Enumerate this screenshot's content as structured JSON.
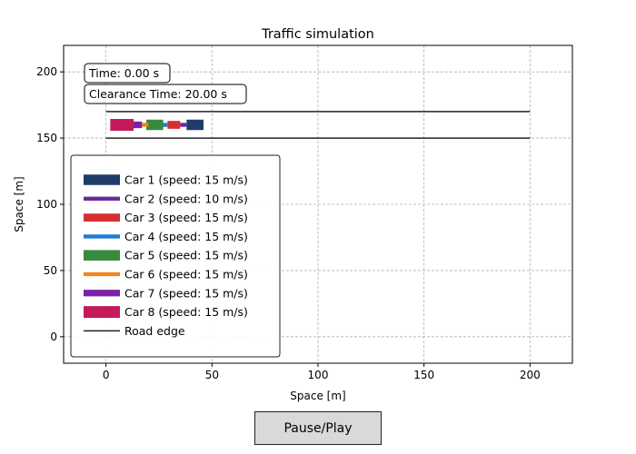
{
  "controls": {
    "pause_play_label": "Pause/Play"
  },
  "chart_data": {
    "type": "traffic",
    "title": "Traffic simulation",
    "xlabel": "Space [m]",
    "ylabel": "Space [m]",
    "xlim": [
      -20,
      220
    ],
    "ylim": [
      -20,
      220
    ],
    "xticks": [
      0,
      50,
      100,
      150,
      200
    ],
    "yticks": [
      0,
      50,
      100,
      150,
      200
    ],
    "grid": true,
    "legend_position": "lower-left",
    "info": {
      "time_text": "Time: 0.00 s",
      "clearance_text": "Clearance Time: 20.00 s"
    },
    "road_edges": [
      {
        "x": [
          0,
          200
        ],
        "y": [
          170,
          170
        ],
        "color": "#222222"
      },
      {
        "x": [
          0,
          200
        ],
        "y": [
          150,
          150
        ],
        "color": "#222222"
      }
    ],
    "road_edge_label": "Road edge",
    "cars": [
      {
        "name": "Car 1 (speed: 15 m/s)",
        "color": "#1f3b6b",
        "x_start": 38,
        "x_end": 46,
        "y": 160,
        "thickness": 8
      },
      {
        "name": "Car 2 (speed: 10 m/s)",
        "color": "#6a2a9a",
        "x_start": 35,
        "x_end": 38,
        "y": 160,
        "thickness": 3
      },
      {
        "name": "Car 3 (speed: 15 m/s)",
        "color": "#d62f2f",
        "x_start": 29,
        "x_end": 35,
        "y": 160,
        "thickness": 6
      },
      {
        "name": "Car 4 (speed: 15 m/s)",
        "color": "#1f7bd4",
        "x_start": 26,
        "x_end": 29,
        "y": 160,
        "thickness": 3
      },
      {
        "name": "Car 5 (speed: 15 m/s)",
        "color": "#3a8a3e",
        "x_start": 19,
        "x_end": 27,
        "y": 160,
        "thickness": 8
      },
      {
        "name": "Car 6 (speed: 15 m/s)",
        "color": "#f28319",
        "x_start": 17,
        "x_end": 20,
        "y": 160,
        "thickness": 3
      },
      {
        "name": "Car 7 (speed: 15 m/s)",
        "color": "#7b22a6",
        "x_start": 12,
        "x_end": 17,
        "y": 160,
        "thickness": 5
      },
      {
        "name": "Car 8 (speed: 15 m/s)",
        "color": "#c41a5b",
        "x_start": 2,
        "x_end": 13,
        "y": 160,
        "thickness": 9
      }
    ]
  }
}
